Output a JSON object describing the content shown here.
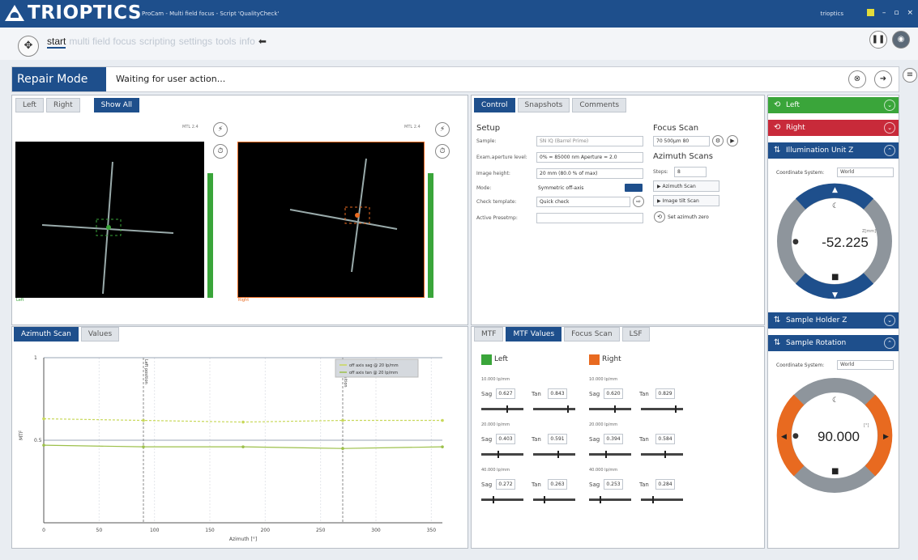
{
  "window": {
    "logo_text": "TRIOPTICS",
    "title": "ProCam - Multi field focus - Script 'QualityCheck'",
    "user": "trioptics"
  },
  "nav": {
    "tabs": [
      {
        "label": "start",
        "active": true
      },
      {
        "label": "multi field focus",
        "active": false
      },
      {
        "label": "scripting",
        "active": false
      },
      {
        "label": "settings",
        "active": false
      },
      {
        "label": "tools",
        "active": false
      },
      {
        "label": "info",
        "active": false
      }
    ],
    "back_glyph": "⬅"
  },
  "repair": {
    "label": "Repair Mode",
    "message": "Waiting for user action..."
  },
  "cameras": {
    "tabs": [
      "Left",
      "Right",
      "Show All"
    ],
    "selected_tab": "Show All",
    "views": [
      {
        "label": "MTL 2.4",
        "footer": "Left",
        "accent": "#3aa53a",
        "level": 0.8
      },
      {
        "label": "MTL 2.4",
        "footer": "Right",
        "accent": "#e86a20",
        "level": 0.8
      }
    ]
  },
  "azimuth": {
    "tabs": [
      "Azimuth Scan",
      "Values"
    ],
    "selected_tab": "Azimuth Scan"
  },
  "chart_data": {
    "type": "line",
    "xlabel": "Azimuth [°]",
    "ylabel": "MTF",
    "xlim": [
      0,
      360
    ],
    "ylim": [
      0,
      1
    ],
    "x_ticks": [
      0,
      50,
      100,
      150,
      200,
      250,
      300,
      350
    ],
    "y_ticks": [
      {
        "v": 0.5,
        "label": "0.5"
      },
      {
        "v": 1,
        "label": "1"
      }
    ],
    "markers": [
      {
        "x": 90,
        "label": "Left position"
      },
      {
        "x": 270,
        "label": "Right position"
      }
    ],
    "series": [
      {
        "name": "off axis sag @ 20 lp/mm",
        "color": "#c8d85a",
        "x": [
          0,
          90,
          180,
          270,
          360
        ],
        "values": [
          0.63,
          0.62,
          0.61,
          0.62,
          0.62
        ]
      },
      {
        "name": "off axis tan @ 20 lp/mm",
        "color": "#9cc04a",
        "x": [
          0,
          90,
          180,
          270,
          360
        ],
        "values": [
          0.47,
          0.46,
          0.46,
          0.45,
          0.46
        ]
      }
    ]
  },
  "control": {
    "tabs": [
      "Control",
      "Snapshots",
      "Comments"
    ],
    "selected_tab": "Control",
    "setup": {
      "title": "Setup",
      "rows": [
        {
          "label": "Sample:",
          "value": "SN IQ (Barrel Prime)"
        },
        {
          "label": "Exam.aperture level:",
          "value": "0% = 85000 nm Aperture = 2.0"
        },
        {
          "label": "Image height:",
          "value": "20 mm (80.0 % of max)"
        },
        {
          "label": "Mode:",
          "value": "Symmetric off-axis"
        },
        {
          "label": "Check template:",
          "value": "Quick check"
        },
        {
          "label": "Active Presetmp:",
          "value": ""
        }
      ]
    },
    "focus_scan": {
      "title": "Focus Scan",
      "value": "70 500µm 80"
    },
    "azimuth_scans": {
      "title": "Azimuth Scans",
      "steps_label": "Steps:",
      "steps_value": "8",
      "buttons": [
        "Azimuth Scan",
        "Image tilt Scan"
      ],
      "set_label": "Set azimuth zero"
    }
  },
  "mtf": {
    "tabs": [
      "MTF",
      "MTF Values",
      "Focus Scan",
      "LSF"
    ],
    "selected_tab": "MTF Values",
    "left": {
      "name": "Left",
      "color": "#3aa53a",
      "rows": [
        {
          "freq": "10.000 lp/mm",
          "sag": "0.627",
          "tan": "0.843",
          "sag_level": 0.62,
          "tan_level": 0.84
        },
        {
          "freq": "20.000 lp/mm",
          "sag": "0.403",
          "tan": "0.591",
          "sag_level": 0.4,
          "tan_level": 0.59
        },
        {
          "freq": "40.000 lp/mm",
          "sag": "0.272",
          "tan": "0.263",
          "sag_level": 0.27,
          "tan_level": 0.26
        }
      ]
    },
    "right": {
      "name": "Right",
      "color": "#e86a20",
      "rows": [
        {
          "freq": "10.000 lp/mm",
          "sag": "0.620",
          "tan": "0.829",
          "sag_level": 0.62,
          "tan_level": 0.83
        },
        {
          "freq": "20.000 lp/mm",
          "sag": "0.394",
          "tan": "0.584",
          "sag_level": 0.39,
          "tan_level": 0.58
        },
        {
          "freq": "40.000 lp/mm",
          "sag": "0.253",
          "tan": "0.284",
          "sag_level": 0.25,
          "tan_level": 0.28
        }
      ],
      "sag_label": "Sag",
      "tan_label": "Tan"
    }
  },
  "right_panel": {
    "headers": [
      {
        "label": "Left",
        "color": "#3aa53a",
        "icon": "⟲"
      },
      {
        "label": "Right",
        "color": "#c82a3a",
        "icon": "⟲"
      },
      {
        "label": "Illumination Unit Z",
        "color": "#1e4f8c",
        "icon": "⇅"
      },
      {
        "label": "Sample Holder Z",
        "color": "#1e4f8c",
        "icon": "⇅"
      },
      {
        "label": "Sample Rotation",
        "color": "#1e4f8c",
        "icon": "⇅"
      }
    ],
    "coord_label": "Coordinate System:",
    "coord_value": "World",
    "illumination": {
      "value": "-52.225",
      "unit": "Z[mm]"
    },
    "rotation": {
      "value": "90.000",
      "unit": "[°]"
    }
  }
}
